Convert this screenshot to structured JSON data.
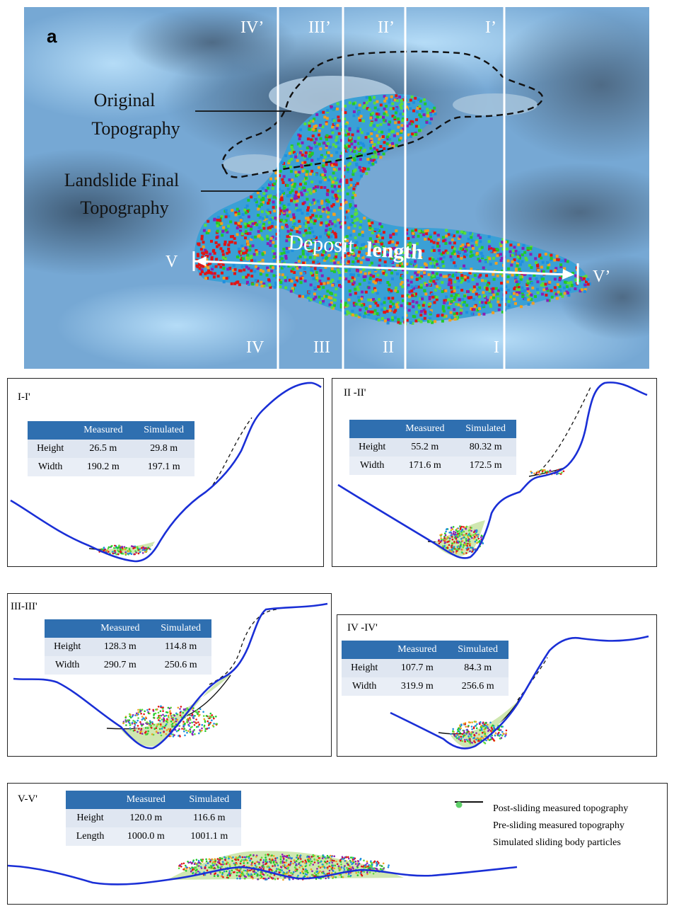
{
  "map": {
    "panel_label": "a",
    "section_top_labels": [
      "IV’",
      "III’",
      "II’",
      "I’"
    ],
    "section_bottom_labels": [
      "IV",
      "III",
      "II",
      "I"
    ],
    "callout_original": [
      "Original",
      "Topography"
    ],
    "callout_final": [
      "Landslide Final",
      "Topography"
    ],
    "deposit_label_1": "Deposit",
    "deposit_label_2": "length",
    "v_left": "V",
    "v_right": "V’"
  },
  "sections": [
    {
      "title": "I-I'",
      "headers": [
        "",
        "Measured",
        "Simulated"
      ],
      "rows": [
        [
          "Height",
          "26.5 m",
          "29.8 m"
        ],
        [
          "Width",
          "190.2 m",
          "197.1 m"
        ]
      ]
    },
    {
      "title": "II -II'",
      "headers": [
        "",
        "Measured",
        "Simulated"
      ],
      "rows": [
        [
          "Height",
          "55.2 m",
          "80.32 m"
        ],
        [
          "Width",
          "171.6 m",
          "172.5 m"
        ]
      ]
    },
    {
      "title": "III-III'",
      "headers": [
        "",
        "Measured",
        "Simulated"
      ],
      "rows": [
        [
          "Height",
          "128.3 m",
          "114.8 m"
        ],
        [
          "Width",
          "290.7 m",
          "250.6 m"
        ]
      ]
    },
    {
      "title": "IV -IV'",
      "headers": [
        "",
        "Measured",
        "Simulated"
      ],
      "rows": [
        [
          "Height",
          "107.7 m",
          "84.3 m"
        ],
        [
          "Width",
          "319.9 m",
          "256.6 m"
        ]
      ]
    },
    {
      "title": "V-V'",
      "headers": [
        "",
        "Measured",
        "Simulated"
      ],
      "rows": [
        [
          "Height",
          "120.0 m",
          "116.6 m"
        ],
        [
          "Length",
          "1000.0 m",
          "1001.1 m"
        ]
      ]
    }
  ],
  "legend": {
    "post": "Post-sliding measured topography",
    "pre": "Pre-sliding measured topography",
    "particles": "Simulated sliding body particles"
  },
  "colors": {
    "profile_line": "#1a2fd6",
    "table_header": "#2f6fb0",
    "particle_colors": [
      "#e01515",
      "#22c92a",
      "#1f8fe0",
      "#8a1fb5",
      "#f0a020",
      "#5adc3c"
    ]
  }
}
